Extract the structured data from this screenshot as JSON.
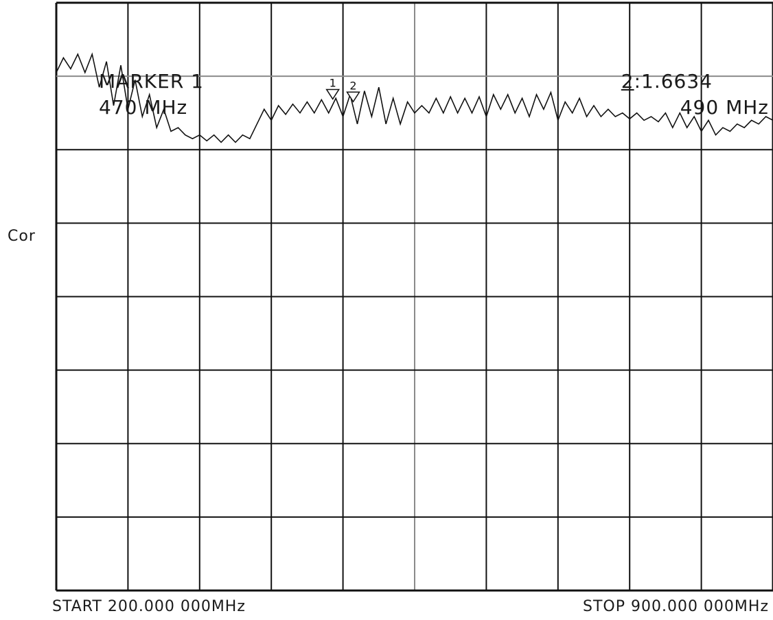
{
  "chart_data": {
    "type": "line",
    "title": "",
    "channel": "Cor",
    "grid": true,
    "grid_divisions": {
      "x": 10,
      "y": 8
    },
    "xlim": [
      200,
      900
    ],
    "x_unit": "MHz",
    "start_label": "START 200.000 000MHz",
    "stop_label": "STOP 900.000 000MHz",
    "marker_readout": {
      "title": "MARKER  1",
      "frequency": "470  MHz"
    },
    "secondary_readout": {
      "prefix": "2",
      "value": ":1.6634",
      "frequency": "490  MHz"
    },
    "markers": [
      {
        "label": "1",
        "x": 470
      },
      {
        "label": "2",
        "x": 490
      }
    ],
    "trace": {
      "color": "#111111",
      "x": [
        200,
        207,
        214,
        221,
        228,
        235,
        242,
        249,
        256,
        263,
        270,
        277,
        284,
        291,
        298,
        305,
        312,
        319,
        326,
        333,
        340,
        347,
        354,
        361,
        368,
        375,
        382,
        389,
        396,
        403,
        410,
        417,
        424,
        431,
        438,
        445,
        452,
        459,
        466,
        473,
        480,
        487,
        494,
        501,
        508,
        515,
        522,
        529,
        536,
        543,
        550,
        557,
        564,
        571,
        578,
        585,
        592,
        599,
        606,
        613,
        620,
        627,
        634,
        641,
        648,
        655,
        662,
        669,
        676,
        683,
        690,
        697,
        704,
        711,
        718,
        725,
        732,
        739,
        746,
        753,
        760,
        767,
        774,
        781,
        788,
        795,
        802,
        809,
        816,
        823,
        830,
        837,
        844,
        851,
        858,
        865,
        872,
        879,
        886,
        893,
        900
      ],
      "y": [
        7.05,
        7.25,
        7.1,
        7.3,
        7.05,
        7.3,
        6.85,
        7.2,
        6.6,
        7.15,
        6.55,
        6.95,
        6.45,
        6.75,
        6.3,
        6.55,
        6.25,
        6.3,
        6.2,
        6.15,
        6.2,
        6.12,
        6.2,
        6.1,
        6.2,
        6.1,
        6.2,
        6.15,
        6.35,
        6.55,
        6.4,
        6.6,
        6.48,
        6.62,
        6.5,
        6.65,
        6.5,
        6.68,
        6.5,
        6.7,
        6.45,
        6.75,
        6.35,
        6.8,
        6.45,
        6.85,
        6.35,
        6.7,
        6.35,
        6.65,
        6.5,
        6.6,
        6.5,
        6.7,
        6.5,
        6.72,
        6.5,
        6.7,
        6.5,
        6.72,
        6.45,
        6.75,
        6.55,
        6.75,
        6.5,
        6.7,
        6.45,
        6.75,
        6.55,
        6.78,
        6.4,
        6.65,
        6.5,
        6.7,
        6.45,
        6.6,
        6.45,
        6.55,
        6.45,
        6.5,
        6.42,
        6.5,
        6.4,
        6.45,
        6.38,
        6.5,
        6.3,
        6.5,
        6.3,
        6.45,
        6.25,
        6.4,
        6.2,
        6.3,
        6.25,
        6.35,
        6.3,
        6.4,
        6.35,
        6.45,
        6.4
      ],
      "ylim": [
        0,
        8
      ]
    }
  }
}
